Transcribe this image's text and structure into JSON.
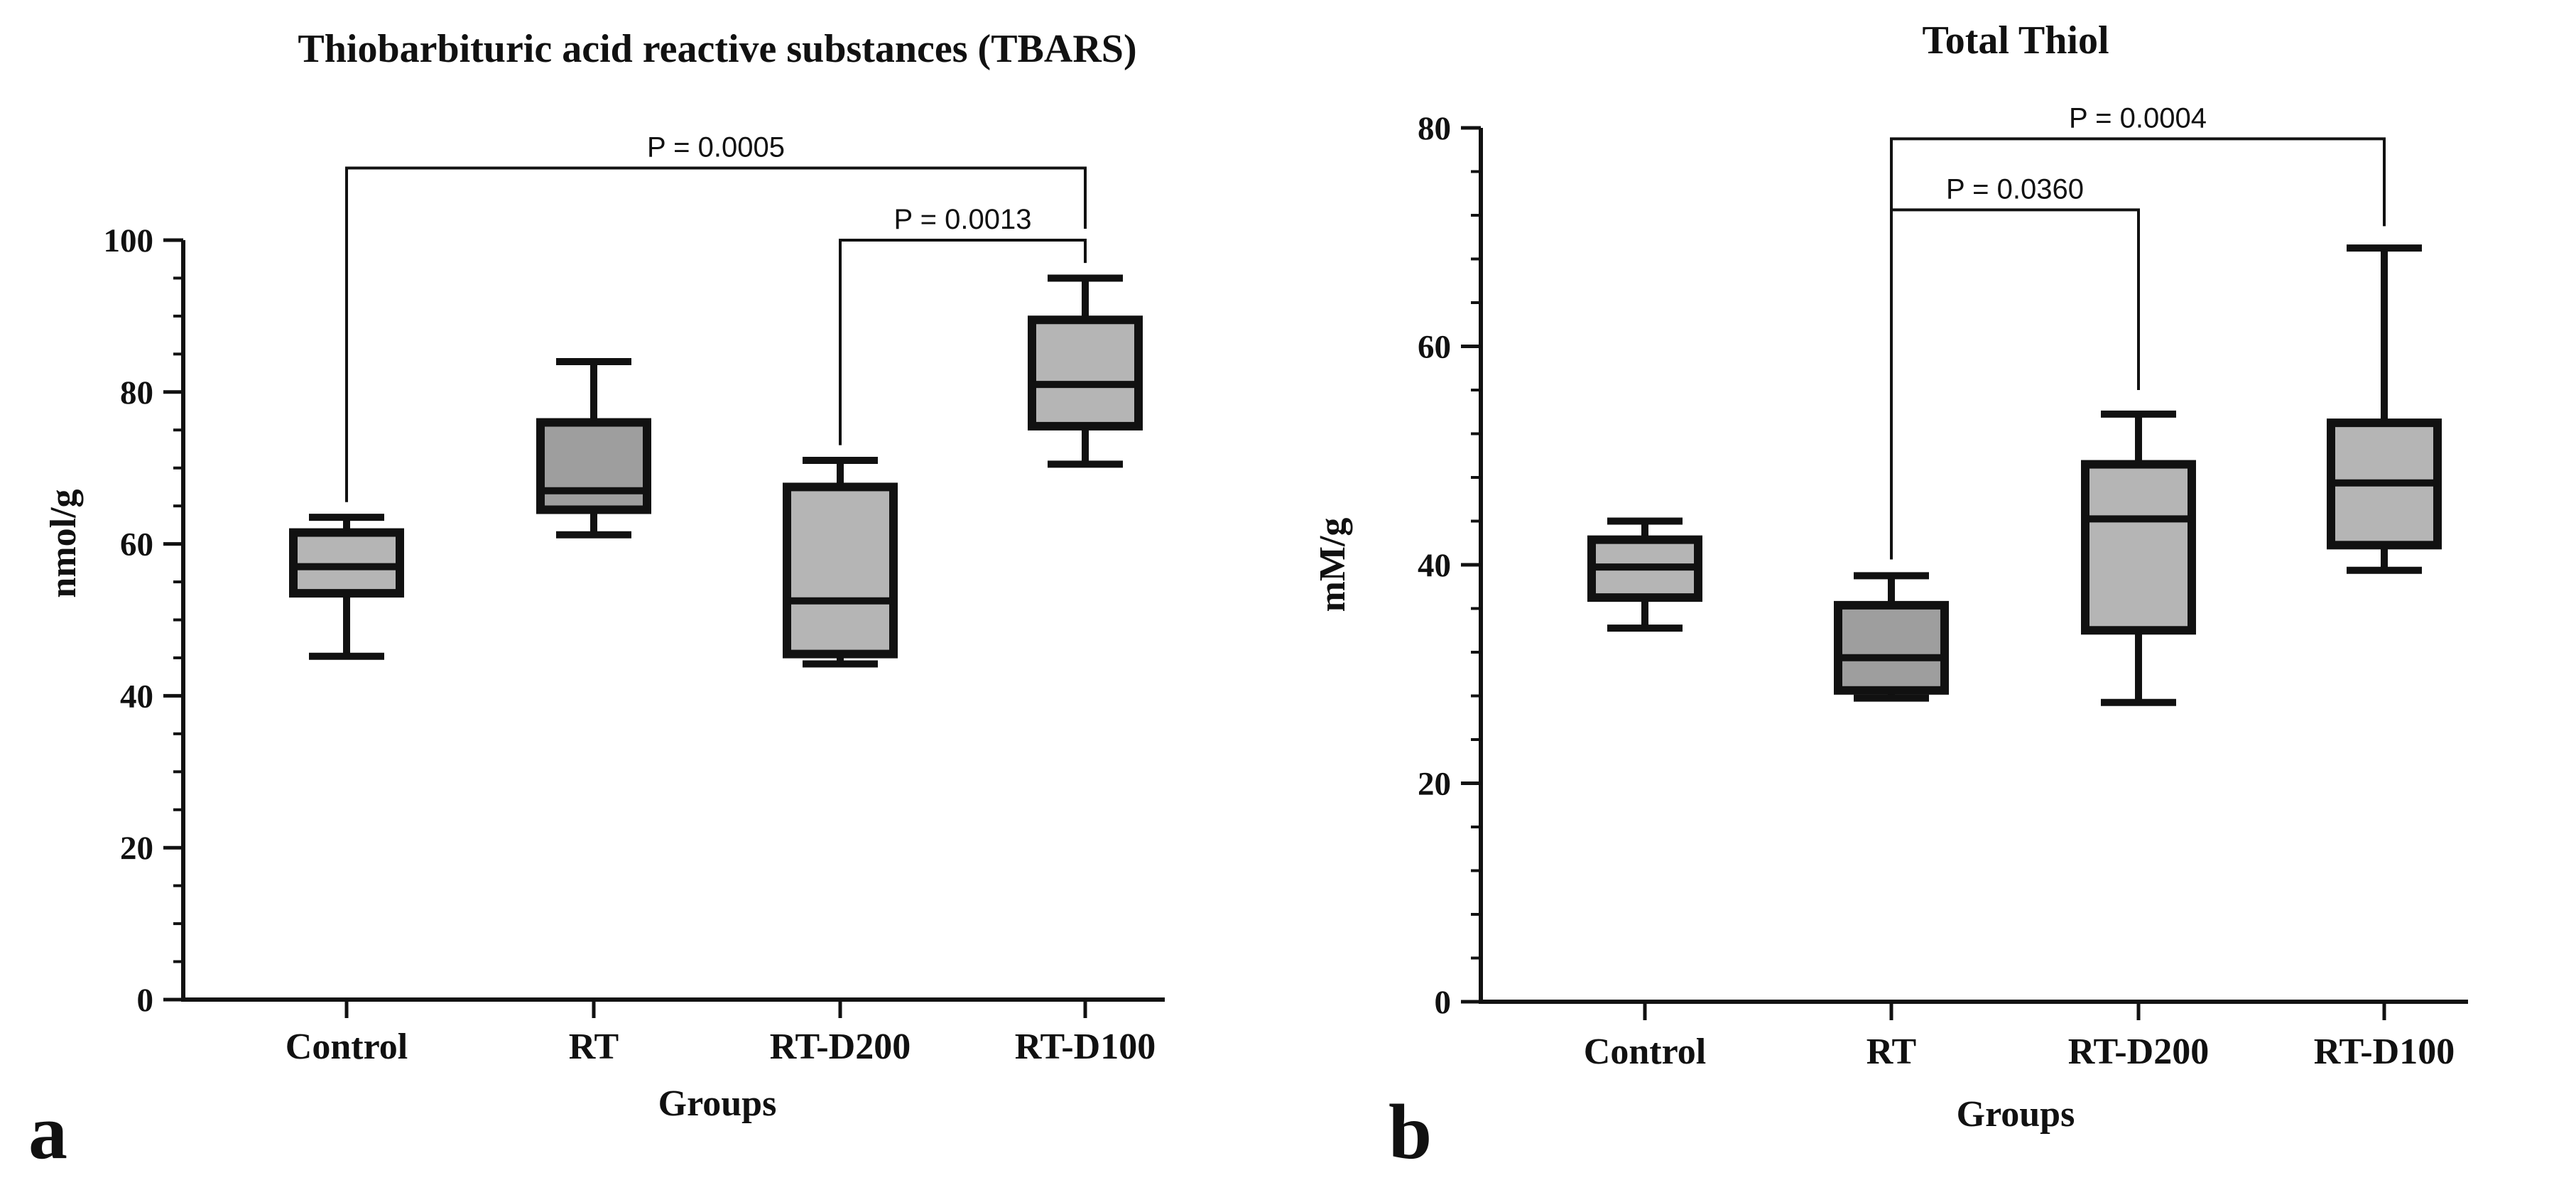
{
  "chart_data": [
    {
      "type": "box",
      "panel_label": "a",
      "title": "Thiobarbituric acid reactive substances (TBARS)",
      "xlabel": "Groups",
      "ylabel": "nmol/g",
      "ylim": [
        0,
        100
      ],
      "yticks": [
        0,
        20,
        40,
        60,
        80,
        100
      ],
      "ytick_labels": [
        "0",
        "20",
        "40",
        "60",
        "80",
        "100"
      ],
      "categories": [
        "Control",
        "RT",
        "RT-D200",
        "RT-D100"
      ],
      "boxes": [
        {
          "name": "Control",
          "min": 45.2,
          "q1": 53.5,
          "median": 57.0,
          "q3": 61.5,
          "max": 63.5,
          "fill": "#b5b5b5"
        },
        {
          "name": "RT",
          "min": 61.2,
          "q1": 64.5,
          "median": 67.0,
          "q3": 76.0,
          "max": 84.0,
          "fill": "#9e9e9e"
        },
        {
          "name": "RT-D200",
          "min": 44.2,
          "q1": 45.5,
          "median": 52.5,
          "q3": 67.5,
          "max": 71.0,
          "fill": "#b5b5b5"
        },
        {
          "name": "RT-D100",
          "min": 70.5,
          "q1": 75.5,
          "median": 81.0,
          "q3": 89.5,
          "max": 95.0,
          "fill": "#b5b5b5"
        }
      ],
      "comparisons": [
        {
          "from": 0,
          "to": 3,
          "label": "P = 0.0005",
          "level": 109.5,
          "from_start": 65.5,
          "to_start": 101.5
        },
        {
          "from": 2,
          "to": 3,
          "label": "P = 0.0013",
          "level": 100.0,
          "from_start": 73.0,
          "to_start": 97.0
        }
      ]
    },
    {
      "type": "box",
      "panel_label": "b",
      "title": "Total Thiol",
      "xlabel": "Groups",
      "ylabel": "mM/g",
      "ylim": [
        0,
        80
      ],
      "yticks": [
        0,
        20,
        40,
        60,
        80
      ],
      "ytick_labels": [
        "0",
        "20",
        "40",
        "60",
        "80"
      ],
      "categories": [
        "Control",
        "RT",
        "RT-D200",
        "RT-D100"
      ],
      "boxes": [
        {
          "name": "Control",
          "min": 34.2,
          "q1": 37.0,
          "median": 39.8,
          "q3": 42.3,
          "max": 44.0,
          "fill": "#b5b5b5"
        },
        {
          "name": "RT",
          "min": 27.8,
          "q1": 28.5,
          "median": 31.5,
          "q3": 36.3,
          "max": 39.0,
          "fill": "#9e9e9e"
        },
        {
          "name": "RT-D200",
          "min": 27.4,
          "q1": 34.0,
          "median": 44.2,
          "q3": 49.2,
          "max": 53.8,
          "fill": "#b5b5b5"
        },
        {
          "name": "RT-D100",
          "min": 39.5,
          "q1": 41.8,
          "median": 47.5,
          "q3": 53.0,
          "max": 69.0,
          "fill": "#b5b5b5"
        }
      ],
      "comparisons": [
        {
          "from": 1,
          "to": 3,
          "label": "P = 0.0004",
          "level": 79.0,
          "from_start": 40.5,
          "to_start": 71.0
        },
        {
          "from": 1,
          "to": 2,
          "label": "P = 0.0360",
          "level": 72.5,
          "from_start": 40.5,
          "to_start": 56.0
        }
      ]
    }
  ]
}
